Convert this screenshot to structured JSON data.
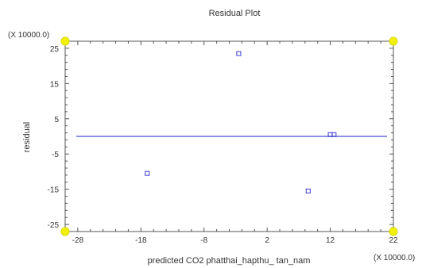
{
  "chart_data": {
    "type": "scatter",
    "title": "Residual Plot",
    "xlabel": "predicted CO2 phatthai_hapthu_ tan_nam",
    "ylabel": "residual",
    "x_multiplier": "(X 10000.0)",
    "y_multiplier": "(X 10000.0)",
    "xlim": [
      -30,
      22
    ],
    "ylim": [
      -27,
      27
    ],
    "x_ticks": [
      -28,
      -18,
      -8,
      2,
      12,
      22
    ],
    "y_ticks": [
      25,
      15,
      5,
      -5,
      -15,
      -25
    ],
    "x_tick_labels": [
      "-28",
      "-18",
      "-8",
      "2",
      "12",
      "22"
    ],
    "y_tick_labels": [
      "25",
      "15",
      "5",
      "-5",
      "-15",
      "-25"
    ],
    "points": [
      {
        "x": -2.5,
        "y": 23.5
      },
      {
        "x": -17.0,
        "y": -10.5
      },
      {
        "x": 8.5,
        "y": -15.5
      },
      {
        "x": 12.0,
        "y": 0.5
      },
      {
        "x": 12.6,
        "y": 0.5
      }
    ],
    "reference_line_y": 0,
    "grid": false,
    "colors": {
      "marker": "#3b3bd6",
      "reference_line": "#4a4ae0",
      "axes": "#555555",
      "corner_marker": "#f2f200"
    }
  }
}
